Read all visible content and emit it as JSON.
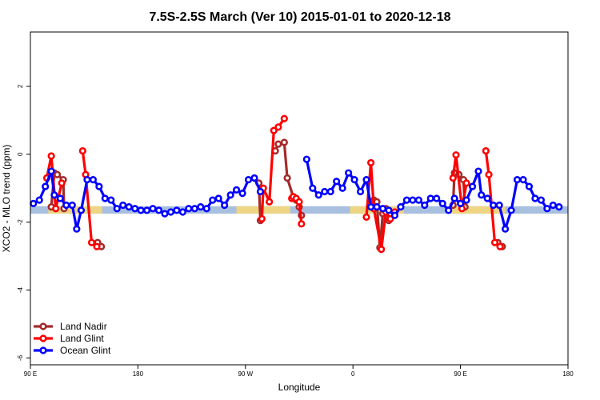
{
  "chart_data": {
    "type": "line",
    "title": "7.5S-2.5S March (Ver 10)   2015-01-01 to 2020-12-18",
    "xlabel": "Longitude",
    "ylabel": "XCO2 - MLO trend (ppm)",
    "xlim": [
      90,
      450
    ],
    "ylim": [
      -6.2,
      3.6
    ],
    "x_ticks": [
      {
        "value": 90,
        "label": "90 E"
      },
      {
        "value": 162,
        "label": "180"
      },
      {
        "value": 234,
        "label": "90 W"
      },
      {
        "value": 306,
        "label": "0"
      },
      {
        "value": 378,
        "label": "90 E"
      },
      {
        "value": 450,
        "label": "180"
      }
    ],
    "y_ticks": [
      {
        "value": 2,
        "label": "2"
      },
      {
        "value": 0,
        "label": "0"
      },
      {
        "value": -2,
        "label": "-2"
      },
      {
        "value": -4,
        "label": "-4"
      },
      {
        "value": -6,
        "label": "-6"
      }
    ],
    "band": {
      "y_min": -1.75,
      "y_max": -1.53,
      "color": "#a9bfdf",
      "highlight_color": "#f5d77a",
      "highlights": [
        [
          102,
          138
        ],
        [
          228,
          264
        ],
        [
          304,
          340
        ],
        [
          372,
          408
        ]
      ]
    },
    "legend": {
      "position": "bottom-left"
    },
    "series": [
      {
        "name": "Land Nadir",
        "color": "#a52a2a",
        "segments": [
          [
            [
              104,
              -1.55
            ],
            [
              106,
              -0.55
            ],
            [
              108,
              -0.6
            ],
            [
              112,
              -0.75
            ],
            [
              112.5,
              -1.6
            ]
          ],
          [
            [
              135,
              -2.6
            ],
            [
              137.5,
              -2.72
            ]
          ],
          [
            [
              243,
              -0.85
            ],
            [
              244,
              -1.95
            ]
          ],
          [
            [
              254,
              0.1
            ],
            [
              256,
              0.3
            ],
            [
              260,
              0.35
            ],
            [
              262,
              -0.7
            ],
            [
              266,
              -1.25
            ],
            [
              268,
              -1.35
            ],
            [
              270,
              -1.55
            ],
            [
              271.5,
              -1.8
            ]
          ],
          [
            [
              320,
              -1.35
            ],
            [
              322,
              -1.4
            ],
            [
              324,
              -2.75
            ],
            [
              326,
              -1.75
            ],
            [
              328,
              -1.6
            ],
            [
              330,
              -1.95
            ]
          ],
          [
            [
              373,
              -1.5
            ],
            [
              374,
              -0.55
            ],
            [
              377,
              -0.6
            ],
            [
              380,
              -0.75
            ],
            [
              381,
              -1.55
            ]
          ],
          [
            [
              403,
              -2.6
            ],
            [
              406,
              -2.72
            ]
          ]
        ]
      },
      {
        "name": "Land Glint",
        "color": "#ff0000",
        "segments": [
          [
            [
              101,
              -0.7
            ],
            [
              104,
              -0.05
            ],
            [
              107,
              -1.6
            ],
            [
              111,
              -0.85
            ]
          ],
          [
            [
              125,
              0.1
            ],
            [
              127,
              -0.6
            ],
            [
              131,
              -2.6
            ],
            [
              134.5,
              -2.72
            ]
          ],
          [
            [
              245,
              -1.9
            ],
            [
              246,
              -1.0
            ],
            [
              250,
              -1.4
            ],
            [
              253,
              0.7
            ],
            [
              256,
              0.8
            ],
            [
              260,
              1.05
            ]
          ],
          [
            [
              265,
              -1.3
            ],
            [
              266,
              -1.25
            ],
            [
              268,
              -1.3
            ],
            [
              270,
              -1.4
            ],
            [
              271.5,
              -2.05
            ]
          ],
          [
            [
              315,
              -1.85
            ],
            [
              318,
              -0.25
            ],
            [
              320,
              -1.6
            ],
            [
              325,
              -2.8
            ],
            [
              328,
              -1.7
            ],
            [
              331,
              -1.9
            ],
            [
              334,
              -1.7
            ]
          ],
          [
            [
              373,
              -0.7
            ],
            [
              375,
              -0.02
            ],
            [
              379,
              -1.6
            ],
            [
              382,
              -0.85
            ]
          ],
          [
            [
              395,
              0.1
            ],
            [
              397,
              -0.6
            ],
            [
              401,
              -2.6
            ],
            [
              404.5,
              -2.72
            ]
          ]
        ]
      },
      {
        "name": "Ocean Glint",
        "color": "#0000ff",
        "segments": [
          [
            [
              92,
              -1.45
            ],
            [
              96,
              -1.35
            ],
            [
              100,
              -0.95
            ],
            [
              104,
              -0.5
            ],
            [
              106,
              -1.2
            ],
            [
              110,
              -1.3
            ],
            [
              114,
              -1.5
            ],
            [
              118,
              -1.5
            ],
            [
              121,
              -2.2
            ],
            [
              124,
              -1.65
            ],
            [
              128,
              -0.75
            ],
            [
              132,
              -0.75
            ],
            [
              136,
              -0.95
            ],
            [
              140,
              -1.3
            ],
            [
              144,
              -1.35
            ],
            [
              148,
              -1.6
            ],
            [
              152,
              -1.5
            ],
            [
              156,
              -1.55
            ],
            [
              160,
              -1.6
            ],
            [
              164,
              -1.65
            ],
            [
              168,
              -1.65
            ],
            [
              172,
              -1.6
            ],
            [
              176,
              -1.65
            ],
            [
              180,
              -1.75
            ],
            [
              184,
              -1.7
            ],
            [
              188,
              -1.65
            ],
            [
              192,
              -1.7
            ],
            [
              196,
              -1.6
            ],
            [
              200,
              -1.6
            ],
            [
              204,
              -1.55
            ],
            [
              208,
              -1.6
            ],
            [
              212,
              -1.35
            ],
            [
              216,
              -1.3
            ],
            [
              220,
              -1.5
            ],
            [
              224,
              -1.2
            ],
            [
              228,
              -1.05
            ],
            [
              232,
              -1.15
            ],
            [
              236,
              -0.75
            ],
            [
              240,
              -0.7
            ],
            [
              244,
              -1.1
            ]
          ],
          [
            [
              275,
              -0.15
            ],
            [
              279,
              -1.0
            ],
            [
              283,
              -1.2
            ],
            [
              287,
              -1.1
            ],
            [
              291,
              -1.1
            ],
            [
              295,
              -0.8
            ],
            [
              299,
              -1.0
            ],
            [
              303,
              -0.55
            ],
            [
              307,
              -0.75
            ],
            [
              311,
              -1.1
            ],
            [
              315,
              -0.75
            ],
            [
              318,
              -1.55
            ],
            [
              322,
              -1.55
            ],
            [
              326,
              -1.6
            ],
            [
              330,
              -1.65
            ],
            [
              334,
              -1.8
            ],
            [
              338,
              -1.55
            ],
            [
              342,
              -1.35
            ],
            [
              346,
              -1.35
            ],
            [
              350,
              -1.35
            ],
            [
              354,
              -1.5
            ],
            [
              358,
              -1.3
            ],
            [
              362,
              -1.3
            ],
            [
              366,
              -1.45
            ],
            [
              370,
              -1.65
            ],
            [
              374,
              -1.3
            ],
            [
              378,
              -1.45
            ],
            [
              382,
              -1.35
            ],
            [
              386,
              -0.95
            ],
            [
              390,
              -0.5
            ],
            [
              392,
              -1.2
            ],
            [
              396,
              -1.3
            ],
            [
              400,
              -1.5
            ],
            [
              404,
              -1.5
            ],
            [
              408,
              -2.2
            ],
            [
              412,
              -1.65
            ],
            [
              416,
              -0.75
            ],
            [
              420,
              -0.75
            ],
            [
              424,
              -0.95
            ],
            [
              428,
              -1.3
            ],
            [
              432,
              -1.35
            ],
            [
              436,
              -1.6
            ],
            [
              440,
              -1.5
            ],
            [
              444,
              -1.55
            ]
          ]
        ]
      }
    ]
  }
}
